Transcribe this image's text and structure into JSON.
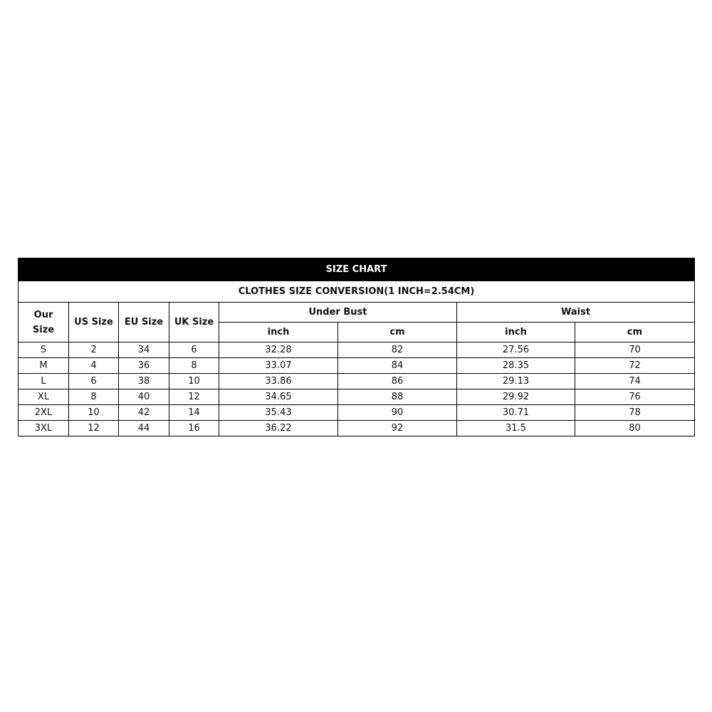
{
  "title": "SIZE CHART",
  "subtitle": "CLOTHES SIZE CONVERSION(1 INCH=2.54CM)",
  "headers": {
    "our_size": [
      "Our",
      "Size"
    ],
    "us_size": "US Size",
    "eu_size": "EU Size",
    "uk_size": "UK Size",
    "under_bust": "Under Bust",
    "waist": "Waist",
    "inch": "inch",
    "cm": "cm"
  },
  "rows": [
    [
      "S",
      "2",
      "34",
      "6",
      "32.28",
      "82",
      "27.56",
      "70"
    ],
    [
      "M",
      "4",
      "36",
      "8",
      "33.07",
      "84",
      "28.35",
      "72"
    ],
    [
      "L",
      "6",
      "38",
      "10",
      "33.86",
      "86",
      "29.13",
      "74"
    ],
    [
      "XL",
      "8",
      "40",
      "12",
      "34.65",
      "88",
      "29.92",
      "76"
    ],
    [
      "2XL",
      "10",
      "42",
      "14",
      "35.43",
      "90",
      "30.71",
      "78"
    ],
    [
      "3XL",
      "12",
      "44",
      "16",
      "36.22",
      "92",
      "31.5",
      "80"
    ]
  ]
}
